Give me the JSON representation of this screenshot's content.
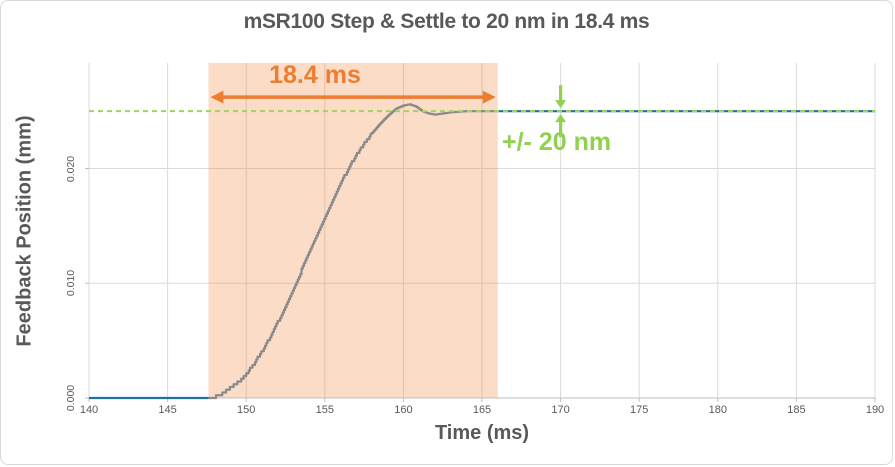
{
  "figure": {
    "title": "mSR100 Step & Settle to 20 nm in 18.4 ms"
  },
  "chart_data": {
    "type": "line",
    "title": "mSR100 Step & Settle to 20 nm in 18.4 ms",
    "xlabel": "Time (ms)",
    "ylabel": "Feedback Position (mm)",
    "xlim": [
      140,
      190
    ],
    "ylim": [
      0,
      0.0292
    ],
    "xticks": [
      140,
      145,
      150,
      155,
      160,
      165,
      170,
      175,
      180,
      185,
      190
    ],
    "yticks": [
      {
        "value": 0.0,
        "label": "0.000"
      },
      {
        "value": 0.01,
        "label": "0.010"
      },
      {
        "value": 0.02,
        "label": "0.020"
      }
    ],
    "grid": true,
    "legend": "none",
    "series": [
      {
        "name": "Feedback Position",
        "color": "#20719F",
        "color_inside_window": "#8A8A8A",
        "quantization_mm": 0.00024,
        "points": [
          [
            140.0,
            0.0
          ],
          [
            147.6,
            0.0
          ],
          [
            148.0,
            0.0001
          ],
          [
            148.5,
            0.0004
          ],
          [
            149.0,
            0.0009
          ],
          [
            149.5,
            0.0014
          ],
          [
            150.0,
            0.0021
          ],
          [
            150.5,
            0.003
          ],
          [
            151.0,
            0.0041
          ],
          [
            151.5,
            0.0053
          ],
          [
            152.0,
            0.0066
          ],
          [
            152.5,
            0.008
          ],
          [
            153.0,
            0.0095
          ],
          [
            153.5,
            0.0111
          ],
          [
            154.0,
            0.0127
          ],
          [
            154.5,
            0.0143
          ],
          [
            155.0,
            0.0158
          ],
          [
            155.5,
            0.0173
          ],
          [
            156.0,
            0.0187
          ],
          [
            156.5,
            0.02
          ],
          [
            157.0,
            0.0212
          ],
          [
            157.5,
            0.0222
          ],
          [
            158.0,
            0.0231
          ],
          [
            158.5,
            0.0239
          ],
          [
            159.0,
            0.0246
          ],
          [
            159.5,
            0.0252
          ],
          [
            160.0,
            0.0255
          ],
          [
            160.4,
            0.0256
          ],
          [
            160.8,
            0.0254
          ],
          [
            161.2,
            0.025
          ],
          [
            161.6,
            0.0248
          ],
          [
            162.0,
            0.0247
          ],
          [
            162.5,
            0.0248
          ],
          [
            163.0,
            0.0249
          ],
          [
            164.0,
            0.025
          ],
          [
            165.0,
            0.025
          ],
          [
            166.0,
            0.025
          ],
          [
            190.0,
            0.025
          ]
        ]
      }
    ],
    "annotations": {
      "settle_window": {
        "start_ms": 147.6,
        "end_ms": 166.0,
        "duration_label": "18.4 ms",
        "fill_color": "#ED7D31",
        "fill_opacity": 0.27,
        "arrow_color": "#ED7D31"
      },
      "settle_target": {
        "value_mm": 0.025,
        "line_color": "#9CD65A",
        "line_style": "dashed",
        "tolerance_label": "+/- 20 nm",
        "label_color": "#92D050",
        "tolerance_arrows_at_ms": 170
      }
    }
  }
}
